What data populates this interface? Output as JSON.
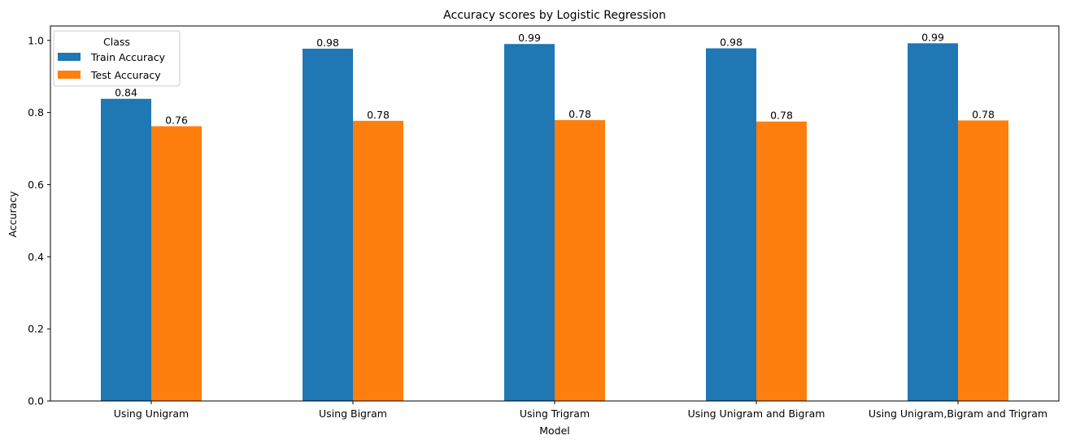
{
  "chart_data": {
    "type": "bar",
    "title": "Accuracy scores by Logistic Regression",
    "xlabel": "Model",
    "ylabel": "Accuracy",
    "categories": [
      "Using Unigram",
      "Using Bigram",
      "Using Trigram",
      "Using Unigram and Bigram",
      "Using Unigram,Bigram and Trigram"
    ],
    "series": [
      {
        "name": "Train Accuracy",
        "color": "#1f77b4",
        "values": [
          0.838,
          0.977,
          0.99,
          0.978,
          0.992
        ],
        "labels": [
          "0.84",
          "0.98",
          "0.99",
          "0.98",
          "0.99"
        ]
      },
      {
        "name": "Test Accuracy",
        "color": "#ff7f0e",
        "values": [
          0.762,
          0.777,
          0.779,
          0.775,
          0.778
        ],
        "labels": [
          "0.76",
          "0.78",
          "0.78",
          "0.78",
          "0.78"
        ]
      }
    ],
    "ylim": [
      0,
      1.04
    ],
    "yticks": [
      0.0,
      0.2,
      0.4,
      0.6,
      0.8,
      1.0
    ],
    "ytick_labels": [
      "0.0",
      "0.2",
      "0.4",
      "0.6",
      "0.8",
      "1.0"
    ],
    "grid": false,
    "legend": {
      "title": "Class",
      "placement": "top-left"
    }
  }
}
